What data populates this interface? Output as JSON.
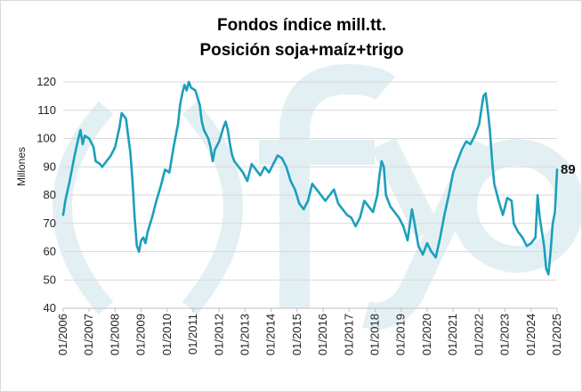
{
  "chart_data": {
    "type": "line",
    "title": "Fondos índice mill.tt.",
    "subtitle": "Posición soja+maíz+trigo",
    "ylabel": "Millones",
    "xlabel": "",
    "ylim": [
      40,
      120
    ],
    "yticks": [
      "40",
      "50",
      "60",
      "70",
      "80",
      "90",
      "100",
      "110",
      "120"
    ],
    "xlim": [
      "2006-01",
      "2025-01"
    ],
    "xticks": [
      "01/2006",
      "01/2007",
      "01/2008",
      "01/2009",
      "01/2010",
      "01/2011",
      "01/2012",
      "01/2013",
      "01/2014",
      "01/2015",
      "01/2016",
      "01/2017",
      "01/2018",
      "01/2019",
      "01/2020",
      "01/2021",
      "01/2022",
      "01/2023",
      "01/2024",
      "01/2025"
    ],
    "grid": "horizontal",
    "legend": "none",
    "line_color": "#1b9fbd",
    "end_label": "89",
    "watermark": "fyo",
    "series": [
      {
        "values": [
          [
            "2006-01",
            73
          ],
          [
            "2006-02",
            78
          ],
          [
            "2006-04",
            85
          ],
          [
            "2006-06",
            93
          ],
          [
            "2006-08",
            100
          ],
          [
            "2006-09",
            103
          ],
          [
            "2006-10",
            98
          ],
          [
            "2006-11",
            101
          ],
          [
            "2007-01",
            100
          ],
          [
            "2007-03",
            97
          ],
          [
            "2007-04",
            92
          ],
          [
            "2007-06",
            91
          ],
          [
            "2007-07",
            90
          ],
          [
            "2007-09",
            92
          ],
          [
            "2007-11",
            94
          ],
          [
            "2008-01",
            97
          ],
          [
            "2008-03",
            104
          ],
          [
            "2008-04",
            109
          ],
          [
            "2008-05",
            108
          ],
          [
            "2008-06",
            107
          ],
          [
            "2008-07",
            101
          ],
          [
            "2008-08",
            95
          ],
          [
            "2008-09",
            85
          ],
          [
            "2008-10",
            72
          ],
          [
            "2008-11",
            62
          ],
          [
            "2008-12",
            60
          ],
          [
            "2009-01",
            64
          ],
          [
            "2009-02",
            65
          ],
          [
            "2009-03",
            63
          ],
          [
            "2009-04",
            67
          ],
          [
            "2009-06",
            72
          ],
          [
            "2009-08",
            78
          ],
          [
            "2009-10",
            83
          ],
          [
            "2009-12",
            89
          ],
          [
            "2010-02",
            88
          ],
          [
            "2010-04",
            97
          ],
          [
            "2010-06",
            105
          ],
          [
            "2010-07",
            112
          ],
          [
            "2010-08",
            116
          ],
          [
            "2010-09",
            119
          ],
          [
            "2010-10",
            117
          ],
          [
            "2010-11",
            120
          ],
          [
            "2010-12",
            118
          ],
          [
            "2011-02",
            117
          ],
          [
            "2011-04",
            112
          ],
          [
            "2011-05",
            106
          ],
          [
            "2011-06",
            103
          ],
          [
            "2011-08",
            100
          ],
          [
            "2011-09",
            97
          ],
          [
            "2011-10",
            92
          ],
          [
            "2011-11",
            96
          ],
          [
            "2012-01",
            99
          ],
          [
            "2012-03",
            104
          ],
          [
            "2012-04",
            106
          ],
          [
            "2012-05",
            103
          ],
          [
            "2012-06",
            98
          ],
          [
            "2012-07",
            94
          ],
          [
            "2012-08",
            92
          ],
          [
            "2012-10",
            90
          ],
          [
            "2012-12",
            88
          ],
          [
            "2013-02",
            85
          ],
          [
            "2013-04",
            91
          ],
          [
            "2013-06",
            89
          ],
          [
            "2013-08",
            87
          ],
          [
            "2013-10",
            90
          ],
          [
            "2013-12",
            88
          ],
          [
            "2014-02",
            91
          ],
          [
            "2014-04",
            94
          ],
          [
            "2014-06",
            93
          ],
          [
            "2014-08",
            90
          ],
          [
            "2014-10",
            85
          ],
          [
            "2014-12",
            82
          ],
          [
            "2015-02",
            77
          ],
          [
            "2015-04",
            75
          ],
          [
            "2015-06",
            78
          ],
          [
            "2015-08",
            84
          ],
          [
            "2015-10",
            82
          ],
          [
            "2015-12",
            80
          ],
          [
            "2016-02",
            78
          ],
          [
            "2016-04",
            80
          ],
          [
            "2016-06",
            82
          ],
          [
            "2016-08",
            77
          ],
          [
            "2016-10",
            75
          ],
          [
            "2016-12",
            73
          ],
          [
            "2017-02",
            72
          ],
          [
            "2017-04",
            69
          ],
          [
            "2017-06",
            72
          ],
          [
            "2017-08",
            78
          ],
          [
            "2017-10",
            76
          ],
          [
            "2017-12",
            74
          ],
          [
            "2018-02",
            80
          ],
          [
            "2018-03",
            87
          ],
          [
            "2018-04",
            92
          ],
          [
            "2018-05",
            90
          ],
          [
            "2018-06",
            80
          ],
          [
            "2018-08",
            76
          ],
          [
            "2018-10",
            74
          ],
          [
            "2018-12",
            72
          ],
          [
            "2019-02",
            69
          ],
          [
            "2019-04",
            64
          ],
          [
            "2019-06",
            75
          ],
          [
            "2019-07",
            71
          ],
          [
            "2019-09",
            62
          ],
          [
            "2019-11",
            59
          ],
          [
            "2020-01",
            63
          ],
          [
            "2020-03",
            60
          ],
          [
            "2020-05",
            58
          ],
          [
            "2020-07",
            65
          ],
          [
            "2020-09",
            73
          ],
          [
            "2020-11",
            80
          ],
          [
            "2021-01",
            88
          ],
          [
            "2021-03",
            92
          ],
          [
            "2021-05",
            96
          ],
          [
            "2021-07",
            99
          ],
          [
            "2021-09",
            98
          ],
          [
            "2021-11",
            101
          ],
          [
            "2022-01",
            105
          ],
          [
            "2022-03",
            115
          ],
          [
            "2022-04",
            116
          ],
          [
            "2022-05",
            110
          ],
          [
            "2022-06",
            103
          ],
          [
            "2022-07",
            92
          ],
          [
            "2022-08",
            84
          ],
          [
            "2022-10",
            78
          ],
          [
            "2022-12",
            73
          ],
          [
            "2023-02",
            79
          ],
          [
            "2023-04",
            78
          ],
          [
            "2023-05",
            70
          ],
          [
            "2023-07",
            67
          ],
          [
            "2023-09",
            65
          ],
          [
            "2023-11",
            62
          ],
          [
            "2024-01",
            63
          ],
          [
            "2024-03",
            65
          ],
          [
            "2024-04",
            80
          ],
          [
            "2024-05",
            72
          ],
          [
            "2024-07",
            62
          ],
          [
            "2024-08",
            54
          ],
          [
            "2024-09",
            52
          ],
          [
            "2024-10",
            60
          ],
          [
            "2024-11",
            70
          ],
          [
            "2024-12",
            74
          ],
          [
            "2025-01",
            89
          ]
        ]
      }
    ]
  }
}
